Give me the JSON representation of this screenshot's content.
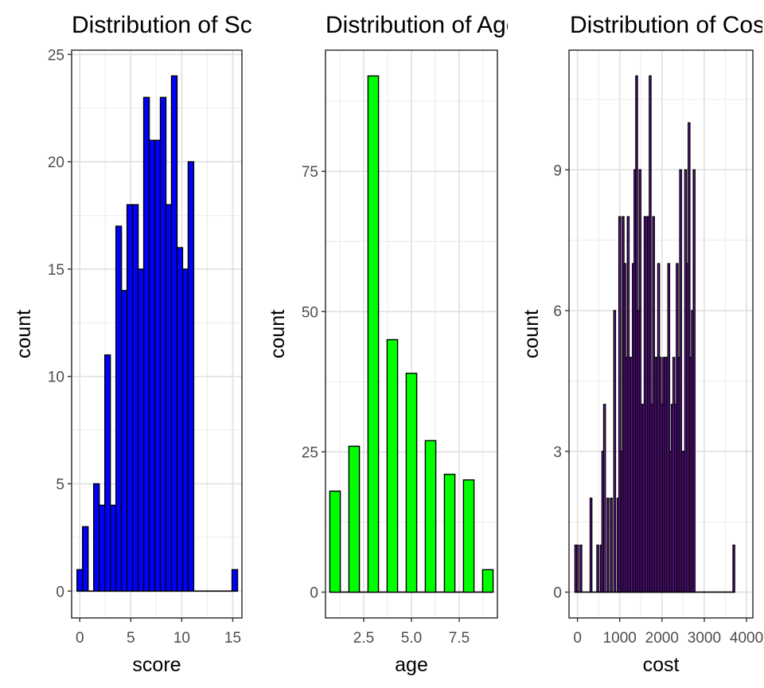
{
  "chart_data": [
    {
      "type": "bar",
      "title": "Distribution of Score",
      "xlabel": "score",
      "ylabel": "count",
      "fill": "#0000ff",
      "outline": "#000000",
      "xlim": [
        -0.8,
        15.9
      ],
      "ylim": [
        -1.25,
        25.2
      ],
      "x_ticks": [
        0,
        5,
        10,
        15
      ],
      "y_ticks": [
        0,
        5,
        10,
        15,
        20,
        25
      ],
      "bin_width": 0.545,
      "bins": [
        {
          "x": 0.0,
          "count": 1
        },
        {
          "x": 0.545,
          "count": 3
        },
        {
          "x": 1.09,
          "count": 0
        },
        {
          "x": 1.635,
          "count": 5
        },
        {
          "x": 2.18,
          "count": 4
        },
        {
          "x": 2.725,
          "count": 11
        },
        {
          "x": 3.27,
          "count": 4
        },
        {
          "x": 3.815,
          "count": 17
        },
        {
          "x": 4.36,
          "count": 14
        },
        {
          "x": 4.905,
          "count": 18
        },
        {
          "x": 5.45,
          "count": 18
        },
        {
          "x": 5.995,
          "count": 15
        },
        {
          "x": 6.54,
          "count": 23
        },
        {
          "x": 7.085,
          "count": 21
        },
        {
          "x": 7.63,
          "count": 21
        },
        {
          "x": 8.175,
          "count": 23
        },
        {
          "x": 8.72,
          "count": 18
        },
        {
          "x": 9.265,
          "count": 24
        },
        {
          "x": 9.81,
          "count": 16
        },
        {
          "x": 10.355,
          "count": 15
        },
        {
          "x": 10.9,
          "count": 20
        },
        {
          "x": 15.2,
          "count": 1
        }
      ]
    },
    {
      "type": "bar",
      "title": "Distribution of Age",
      "xlabel": "age",
      "ylabel": "count",
      "fill": "#00ff00",
      "outline": "#000000",
      "xlim": [
        0.5,
        9.5
      ],
      "ylim": [
        -4.6,
        96.6
      ],
      "x_ticks": [
        2.5,
        5.0,
        7.5
      ],
      "x_tick_labels": [
        "2.5",
        "5.0",
        "7.5"
      ],
      "y_ticks": [
        0,
        25,
        50,
        75
      ],
      "bin_width": 0.55,
      "bins": [
        {
          "x": 1,
          "count": 18
        },
        {
          "x": 2,
          "count": 26
        },
        {
          "x": 3,
          "count": 92
        },
        {
          "x": 4,
          "count": 45
        },
        {
          "x": 5,
          "count": 39
        },
        {
          "x": 6,
          "count": 27
        },
        {
          "x": 7,
          "count": 21
        },
        {
          "x": 8,
          "count": 20
        },
        {
          "x": 9,
          "count": 4
        }
      ]
    },
    {
      "type": "bar",
      "title": "Distribution of Cost",
      "xlabel": "cost",
      "ylabel": "count",
      "fill": "#a020f0",
      "outline": "#000000",
      "xlim": [
        -200,
        4150
      ],
      "ylim": [
        -0.55,
        11.55
      ],
      "x_ticks": [
        0,
        1000,
        2000,
        3000,
        4000
      ],
      "y_ticks": [
        0,
        3,
        6,
        9
      ],
      "bin_width": 40,
      "bins": [
        {
          "x": -40,
          "count": 1
        },
        {
          "x": 0,
          "count": 1
        },
        {
          "x": 80,
          "count": 1
        },
        {
          "x": 320,
          "count": 2
        },
        {
          "x": 480,
          "count": 1
        },
        {
          "x": 560,
          "count": 1
        },
        {
          "x": 600,
          "count": 3
        },
        {
          "x": 640,
          "count": 4
        },
        {
          "x": 720,
          "count": 2
        },
        {
          "x": 800,
          "count": 2
        },
        {
          "x": 880,
          "count": 6
        },
        {
          "x": 960,
          "count": 2
        },
        {
          "x": 1000,
          "count": 8
        },
        {
          "x": 1040,
          "count": 3
        },
        {
          "x": 1080,
          "count": 8
        },
        {
          "x": 1120,
          "count": 7
        },
        {
          "x": 1160,
          "count": 5
        },
        {
          "x": 1200,
          "count": 8
        },
        {
          "x": 1240,
          "count": 5
        },
        {
          "x": 1280,
          "count": 5
        },
        {
          "x": 1320,
          "count": 7
        },
        {
          "x": 1360,
          "count": 9
        },
        {
          "x": 1400,
          "count": 11
        },
        {
          "x": 1440,
          "count": 6
        },
        {
          "x": 1480,
          "count": 9
        },
        {
          "x": 1520,
          "count": 4
        },
        {
          "x": 1560,
          "count": 4
        },
        {
          "x": 1600,
          "count": 8
        },
        {
          "x": 1640,
          "count": 8
        },
        {
          "x": 1680,
          "count": 8
        },
        {
          "x": 1720,
          "count": 11
        },
        {
          "x": 1760,
          "count": 4
        },
        {
          "x": 1800,
          "count": 8
        },
        {
          "x": 1840,
          "count": 5
        },
        {
          "x": 1880,
          "count": 5
        },
        {
          "x": 1920,
          "count": 7
        },
        {
          "x": 1960,
          "count": 5
        },
        {
          "x": 2000,
          "count": 4
        },
        {
          "x": 2040,
          "count": 5
        },
        {
          "x": 2080,
          "count": 5
        },
        {
          "x": 2120,
          "count": 5
        },
        {
          "x": 2160,
          "count": 7
        },
        {
          "x": 2200,
          "count": 3
        },
        {
          "x": 2240,
          "count": 4
        },
        {
          "x": 2280,
          "count": 5
        },
        {
          "x": 2320,
          "count": 4
        },
        {
          "x": 2360,
          "count": 7
        },
        {
          "x": 2400,
          "count": 5
        },
        {
          "x": 2440,
          "count": 9
        },
        {
          "x": 2480,
          "count": 3
        },
        {
          "x": 2520,
          "count": 3
        },
        {
          "x": 2560,
          "count": 9
        },
        {
          "x": 2600,
          "count": 7
        },
        {
          "x": 2640,
          "count": 10
        },
        {
          "x": 2680,
          "count": 5
        },
        {
          "x": 2720,
          "count": 6
        },
        {
          "x": 2760,
          "count": 9
        },
        {
          "x": 3700,
          "count": 1
        }
      ]
    }
  ]
}
